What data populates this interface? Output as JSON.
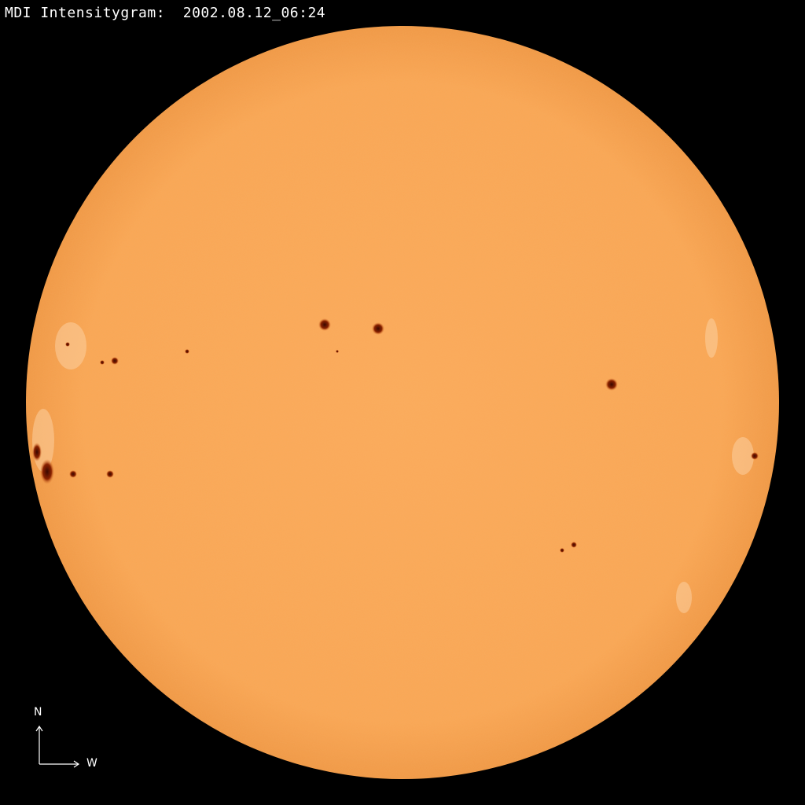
{
  "title": "MDI Intensitygram:  2002.08.12_06:24",
  "compass": {
    "north": "N",
    "west": "W"
  },
  "colors": {
    "disk": "#f9a654",
    "limb": "#f29a47",
    "spot": "#7a1a00",
    "background": "#000000"
  }
}
